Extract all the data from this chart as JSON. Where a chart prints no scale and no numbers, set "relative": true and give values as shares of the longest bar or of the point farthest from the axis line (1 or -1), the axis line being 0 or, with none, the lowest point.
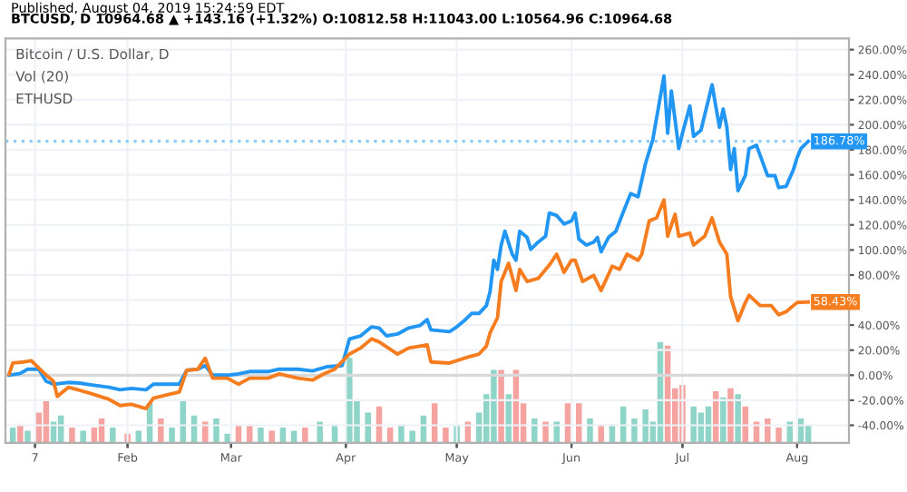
{
  "chart_data": [
    {
      "type": "line",
      "title": "BTCUSD, D 10964.68 ▲ +143.16 (+1.32%) O:10812.58 H:11043.00 L:10564.96 C:10964.68",
      "subtitle": "Published, August 04, 2019 15:24:59 EDT",
      "annotations": [
        "Bitcoin / U.S. Dollar, D",
        "Vol (20)",
        "ETHUSD",
        {
          "text": "186.78%",
          "x": "2019-08-04",
          "y": 186.78
        },
        {
          "text": "58.43%",
          "x": "2019-08-04",
          "y": 58.43
        }
      ],
      "series": [
        {
          "color": "#2196f3",
          "x": [
            "2018-12-31",
            "2019-01-03",
            "2019-01-05",
            "2019-01-08",
            "2019-01-10",
            "2019-01-12",
            "2019-01-16",
            "2019-01-19",
            "2019-01-22",
            "2019-01-27",
            "2019-01-30",
            "2019-02-02",
            "2019-02-06",
            "2019-02-08",
            "2019-02-12",
            "2019-02-15",
            "2019-02-17",
            "2019-02-20",
            "2019-02-22",
            "2019-02-24",
            "2019-02-28",
            "2019-03-03",
            "2019-03-06",
            "2019-03-11",
            "2019-03-14",
            "2019-03-19",
            "2019-03-23",
            "2019-03-27",
            "2019-03-31",
            "2019-04-02",
            "2019-04-05",
            "2019-04-08",
            "2019-04-10",
            "2019-04-12",
            "2019-04-15",
            "2019-04-18",
            "2019-04-21",
            "2019-04-23",
            "2019-04-24",
            "2019-04-29",
            "2019-05-01",
            "2019-05-03",
            "2019-05-05",
            "2019-05-07",
            "2019-05-09",
            "2019-05-10",
            "2019-05-11",
            "2019-05-12",
            "2019-05-13",
            "2019-05-14",
            "2019-05-16",
            "2019-05-17",
            "2019-05-18",
            "2019-05-20",
            "2019-05-21",
            "2019-05-23",
            "2019-05-25",
            "2019-05-26",
            "2019-05-28",
            "2019-05-30",
            "2019-06-01",
            "2019-06-02",
            "2019-06-03",
            "2019-06-05",
            "2019-06-07",
            "2019-06-08",
            "2019-06-09",
            "2019-06-11",
            "2019-06-13",
            "2019-06-15",
            "2019-06-17",
            "2019-06-19",
            "2019-06-21",
            "2019-06-23",
            "2019-06-26",
            "2019-06-27",
            "2019-06-28",
            "2019-06-30",
            "2019-07-01",
            "2019-07-03",
            "2019-07-04",
            "2019-07-06",
            "2019-07-09",
            "2019-07-11",
            "2019-07-12",
            "2019-07-13",
            "2019-07-14",
            "2019-07-15",
            "2019-07-16",
            "2019-07-18",
            "2019-07-19",
            "2019-07-21",
            "2019-07-24",
            "2019-07-26",
            "2019-07-27",
            "2019-07-29",
            "2019-07-31",
            "2019-08-01",
            "2019-08-02",
            "2019-08-04"
          ],
          "values": [
            0,
            1.4,
            4.8,
            4.8,
            -4.8,
            -7.2,
            -5.8,
            -6.3,
            -7.7,
            -9.7,
            -11.6,
            -10.6,
            -11.6,
            -7.2,
            -7.2,
            -7.2,
            3.9,
            4.8,
            7.7,
            0,
            0,
            1,
            2.9,
            2.9,
            4.8,
            4.8,
            3.4,
            6.8,
            7.7,
            29,
            31.4,
            38.6,
            37.7,
            31.4,
            32.9,
            37.7,
            39.6,
            44.4,
            36.2,
            34.8,
            38.6,
            43.5,
            49.3,
            49.3,
            55.6,
            66.7,
            91.8,
            84.5,
            103.9,
            115,
            96.6,
            91.8,
            115,
            110,
            100.5,
            106.3,
            111,
            129.5,
            127.5,
            120.8,
            123.2,
            129.5,
            108.7,
            103.9,
            106.3,
            110,
            98.6,
            110,
            115,
            130.4,
            145,
            142.5,
            169,
            188.4,
            239,
            193.2,
            227,
            181,
            193.2,
            215,
            190.8,
            195.6,
            231.9,
            198,
            212.6,
            198,
            164.3,
            181,
            147.3,
            159.4,
            181,
            183.6,
            159.4,
            159.4,
            149.8,
            150.7,
            164.3,
            173.9,
            181,
            186.78
          ]
        },
        {
          "color": "#f57c1f",
          "x": [
            "2018-12-31",
            "2019-01-01",
            "2019-01-04",
            "2019-01-06",
            "2019-01-08",
            "2019-01-10",
            "2019-01-12",
            "2019-01-13",
            "2019-01-16",
            "2019-01-19",
            "2019-01-22",
            "2019-01-27",
            "2019-01-30",
            "2019-02-02",
            "2019-02-06",
            "2019-02-08",
            "2019-02-12",
            "2019-02-15",
            "2019-02-17",
            "2019-02-20",
            "2019-02-22",
            "2019-02-24",
            "2019-02-28",
            "2019-03-03",
            "2019-03-06",
            "2019-03-11",
            "2019-03-14",
            "2019-03-19",
            "2019-03-23",
            "2019-03-26",
            "2019-03-29",
            "2019-04-02",
            "2019-04-05",
            "2019-04-08",
            "2019-04-10",
            "2019-04-15",
            "2019-04-18",
            "2019-04-21",
            "2019-04-23",
            "2019-04-24",
            "2019-04-29",
            "2019-05-04",
            "2019-05-07",
            "2019-05-09",
            "2019-05-10",
            "2019-05-12",
            "2019-05-13",
            "2019-05-15",
            "2019-05-17",
            "2019-05-18",
            "2019-05-20",
            "2019-05-23",
            "2019-05-26",
            "2019-05-28",
            "2019-05-30",
            "2019-06-01",
            "2019-06-02",
            "2019-06-04",
            "2019-06-07",
            "2019-06-09",
            "2019-06-12",
            "2019-06-14",
            "2019-06-16",
            "2019-06-19",
            "2019-06-20",
            "2019-06-22",
            "2019-06-24",
            "2019-06-26",
            "2019-06-27",
            "2019-06-29",
            "2019-06-30",
            "2019-07-03",
            "2019-07-04",
            "2019-07-07",
            "2019-07-09",
            "2019-07-11",
            "2019-07-13",
            "2019-07-14",
            "2019-07-16",
            "2019-07-18",
            "2019-07-19",
            "2019-07-22",
            "2019-07-25",
            "2019-07-27",
            "2019-07-29",
            "2019-07-31",
            "2019-08-01",
            "2019-08-04"
          ],
          "values": [
            1,
            9.7,
            10.6,
            11.6,
            5.8,
            0,
            -4.8,
            -16.9,
            -9.7,
            -12,
            -14.5,
            -19.3,
            -24.2,
            -23.2,
            -26.6,
            -18.4,
            -15.5,
            -13.5,
            3.9,
            4.8,
            13.5,
            -2.4,
            -2.4,
            -7.2,
            -2.4,
            -2.4,
            1,
            -2.4,
            -3.9,
            1,
            4.8,
            16.9,
            21.7,
            29,
            26.6,
            16.9,
            21.7,
            23.2,
            24.2,
            10.6,
            9.7,
            14.5,
            16.9,
            23.2,
            33.8,
            45.9,
            74.9,
            89.4,
            67.6,
            84.5,
            74.9,
            77.3,
            87.9,
            96.6,
            82.1,
            91.8,
            91.8,
            74.9,
            79.7,
            67.6,
            87,
            84.5,
            96.6,
            91.8,
            96.6,
            123.2,
            125.6,
            140,
            111,
            128.5,
            111,
            113.5,
            103.9,
            111,
            125.6,
            106.3,
            96.6,
            62.8,
            43.5,
            58,
            63.8,
            55.6,
            55.6,
            48.3,
            50.7,
            55.6,
            58,
            58.43
          ]
        }
      ],
      "xlim": [
        "2018-12-30",
        "2019-08-15"
      ],
      "xticks": [
        {
          "value": "2019-01-07",
          "label": null
        },
        {
          "value": "2019-02-01",
          "label": null
        },
        {
          "value": "2019-03-01",
          "label": null
        },
        {
          "value": "2019-04-01",
          "label": null
        },
        {
          "value": "2019-05-01",
          "label": null
        },
        {
          "value": "2019-06-01",
          "label": null
        },
        {
          "value": "2019-07-01",
          "label": null
        },
        {
          "value": "2019-08-01",
          "label": null
        }
      ],
      "ylim": [
        -54,
        269
      ],
      "yticks": [
        {
          "value": -40,
          "label": "-40.00%"
        },
        {
          "value": -20,
          "label": "-20.00%"
        },
        {
          "value": 0,
          "label": "0.00%"
        },
        {
          "value": 20,
          "label": "20.00%"
        },
        {
          "value": 40,
          "label": "40.00%"
        },
        {
          "value": 60,
          "label": null
        },
        {
          "value": 80,
          "label": "80.00%"
        },
        {
          "value": 100,
          "label": "100.00%"
        },
        {
          "value": 120,
          "label": "120.00%"
        },
        {
          "value": 140,
          "label": "140.00%"
        },
        {
          "value": 160,
          "label": "160.00%"
        },
        {
          "value": 180,
          "label": "180.00%"
        },
        {
          "value": 200,
          "label": "200.00%"
        },
        {
          "value": 220,
          "label": "220.00%"
        },
        {
          "value": 240,
          "label": "240.00%"
        },
        {
          "value": 260,
          "label": "260.00%"
        }
      ],
      "ref_lines": [
        {
          "axis": "y",
          "value": 186.78,
          "color": "#90caf9",
          "line_style": "dotted"
        },
        {
          "axis": "y",
          "value": 0,
          "color": "#d9d9d9",
          "line_style": "solid"
        }
      ],
      "grid": true,
      "legend": false,
      "marker": "none",
      "line_style": "solid",
      "tick_labels": "y"
    },
    {
      "type": "bar",
      "relative": true,
      "xlim": [
        "2018-12-30",
        "2019-08-15"
      ],
      "xticks": [
        {
          "value": "2019-01-07",
          "label": "7"
        },
        {
          "value": "2019-02-01",
          "label": "Feb"
        },
        {
          "value": "2019-03-01",
          "label": "Mar"
        },
        {
          "value": "2019-04-01",
          "label": "Apr"
        },
        {
          "value": "2019-05-01",
          "label": "May"
        },
        {
          "value": "2019-06-01",
          "label": "Jun"
        },
        {
          "value": "2019-07-01",
          "label": "Jul"
        },
        {
          "value": "2019-08-01",
          "label": "Aug"
        }
      ],
      "x": [
        "2019-01-01",
        "2019-01-03",
        "2019-01-05",
        "2019-01-08",
        "2019-01-10",
        "2019-01-12",
        "2019-01-14",
        "2019-01-17",
        "2019-01-20",
        "2019-01-23",
        "2019-01-25",
        "2019-01-28",
        "2019-02-01",
        "2019-02-04",
        "2019-02-07",
        "2019-02-10",
        "2019-02-13",
        "2019-02-16",
        "2019-02-19",
        "2019-02-22",
        "2019-02-25",
        "2019-02-28",
        "2019-03-03",
        "2019-03-06",
        "2019-03-09",
        "2019-03-12",
        "2019-03-15",
        "2019-03-18",
        "2019-03-21",
        "2019-03-25",
        "2019-03-29",
        "2019-04-02",
        "2019-04-04",
        "2019-04-07",
        "2019-04-10",
        "2019-04-13",
        "2019-04-16",
        "2019-04-19",
        "2019-04-22",
        "2019-04-25",
        "2019-04-28",
        "2019-05-01",
        "2019-05-04",
        "2019-05-07",
        "2019-05-09",
        "2019-05-11",
        "2019-05-13",
        "2019-05-15",
        "2019-05-17",
        "2019-05-19",
        "2019-05-22",
        "2019-05-25",
        "2019-05-28",
        "2019-05-31",
        "2019-06-03",
        "2019-06-06",
        "2019-06-09",
        "2019-06-12",
        "2019-06-15",
        "2019-06-18",
        "2019-06-21",
        "2019-06-23",
        "2019-06-25",
        "2019-06-27",
        "2019-06-29",
        "2019-07-01",
        "2019-07-04",
        "2019-07-06",
        "2019-07-08",
        "2019-07-10",
        "2019-07-12",
        "2019-07-14",
        "2019-07-16",
        "2019-07-18",
        "2019-07-21",
        "2019-07-24",
        "2019-07-27",
        "2019-07-30",
        "2019-08-02",
        "2019-08-04"
      ],
      "values": [
        0.15,
        0.18,
        0.12,
        0.3,
        0.42,
        0.21,
        0.27,
        0.15,
        0.12,
        0.15,
        0.24,
        0.15,
        0.09,
        0.12,
        0.39,
        0.24,
        0.15,
        0.42,
        0.27,
        0.21,
        0.24,
        0.09,
        0.18,
        0.18,
        0.15,
        0.12,
        0.15,
        0.12,
        0.15,
        0.21,
        0.18,
        0.84,
        0.42,
        0.3,
        0.36,
        0.15,
        0.18,
        0.12,
        0.27,
        0.39,
        0.15,
        0.18,
        0.21,
        0.3,
        0.48,
        0.72,
        0.72,
        0.48,
        0.72,
        0.39,
        0.24,
        0.21,
        0.21,
        0.39,
        0.39,
        0.24,
        0.18,
        0.18,
        0.36,
        0.24,
        0.33,
        0.21,
        1,
        0.96,
        0.54,
        0.57,
        0.36,
        0.3,
        0.36,
        0.51,
        0.45,
        0.54,
        0.48,
        0.36,
        0.21,
        0.24,
        0.15,
        0.21,
        0.24,
        0.18
      ],
      "colors": [
        "#8fd4c8",
        "#f4a3a0",
        "#8fd4c8",
        "#f4a3a0",
        "#f4a3a0",
        "#8fd4c8",
        "#8fd4c8",
        "#f4a3a0",
        "#8fd4c8",
        "#f4a3a0",
        "#f4a3a0",
        "#8fd4c8",
        "#f4a3a0",
        "#8fd4c8",
        "#8fd4c8",
        "#f4a3a0",
        "#8fd4c8",
        "#8fd4c8",
        "#8fd4c8",
        "#f4a3a0",
        "#8fd4c8",
        "#8fd4c8",
        "#f4a3a0",
        "#f4a3a0",
        "#8fd4c8",
        "#f4a3a0",
        "#8fd4c8",
        "#8fd4c8",
        "#f4a3a0",
        "#8fd4c8",
        "#8fd4c8",
        "#8fd4c8",
        "#8fd4c8",
        "#8fd4c8",
        "#f4a3a0",
        "#f4a3a0",
        "#8fd4c8",
        "#8fd4c8",
        "#8fd4c8",
        "#f4a3a0",
        "#f4a3a0",
        "#8fd4c8",
        "#f4a3a0",
        "#8fd4c8",
        "#8fd4c8",
        "#8fd4c8",
        "#f4a3a0",
        "#8fd4c8",
        "#f4a3a0",
        "#f4a3a0",
        "#8fd4c8",
        "#f4a3a0",
        "#8fd4c8",
        "#f4a3a0",
        "#f4a3a0",
        "#8fd4c8",
        "#f4a3a0",
        "#8fd4c8",
        "#8fd4c8",
        "#8fd4c8",
        "#8fd4c8",
        "#8fd4c8",
        "#8fd4c8",
        "#f4a3a0",
        "#f4a3a0",
        "#f4a3a0",
        "#8fd4c8",
        "#8fd4c8",
        "#8fd4c8",
        "#f4a3a0",
        "#8fd4c8",
        "#f4a3a0",
        "#8fd4c8",
        "#f4a3a0",
        "#f4a3a0",
        "#f4a3a0",
        "#f4a3a0",
        "#8fd4c8",
        "#8fd4c8",
        "#8fd4c8"
      ]
    }
  ]
}
